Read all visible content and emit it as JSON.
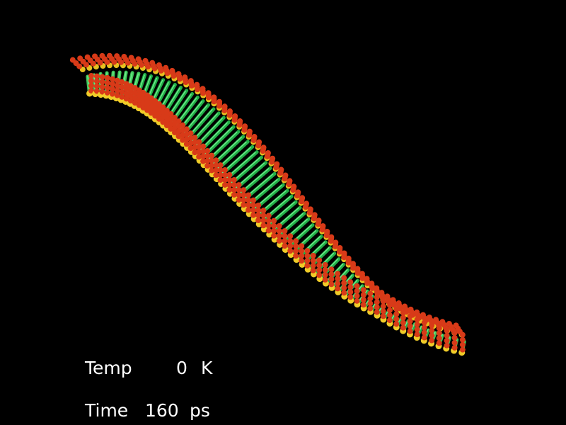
{
  "overlay": {
    "temperature": {
      "label": "Temp",
      "value": 0,
      "unit": "K"
    },
    "time": {
      "label": "Time",
      "value": 160,
      "unit": "ps"
    }
  }
}
